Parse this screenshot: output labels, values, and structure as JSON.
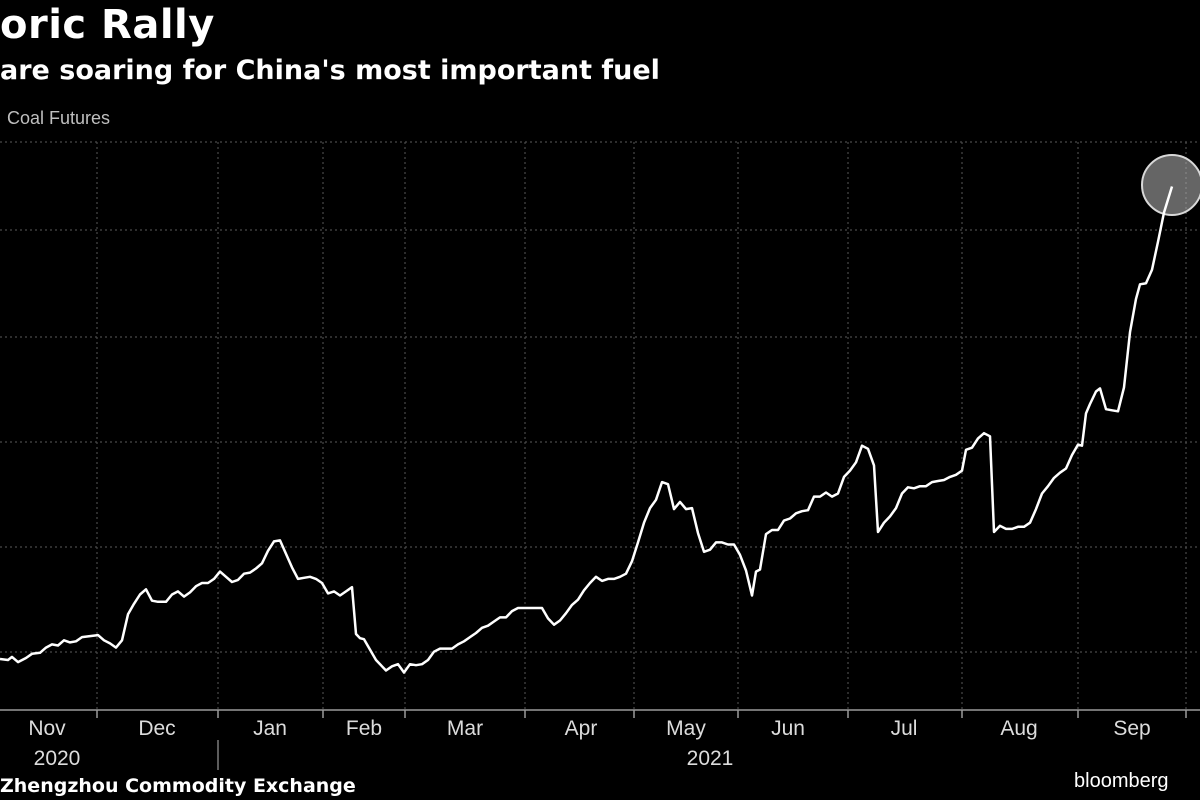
{
  "header": {
    "title": "oric Rally",
    "subtitle": "are soaring for China's most important fuel",
    "legend": "Coal Futures"
  },
  "footer": {
    "source": "Zhengzhou Commodity Exchange",
    "brand": "bloomberg"
  },
  "colors": {
    "background": "#000000",
    "line": "#ffffff",
    "grid": "#4a4a4a",
    "highlight": "#b8b8b8"
  },
  "chart_data": {
    "type": "line",
    "title": "",
    "xlabel": "",
    "ylabel": "",
    "grid": true,
    "x_ticks": [
      "Nov",
      "Dec",
      "Jan",
      "Feb",
      "Mar",
      "Apr",
      "May",
      "Jun",
      "Jul",
      "Aug",
      "Sep"
    ],
    "year_labels": [
      "2020",
      "2021"
    ],
    "highlight": "last point circled",
    "series": [
      {
        "values": [
          [
            0,
            0.9
          ],
          [
            8,
            0.8
          ],
          [
            12,
            1.1
          ],
          [
            18,
            0.6
          ],
          [
            26,
            1.0
          ],
          [
            32,
            1.4
          ],
          [
            40,
            1.5
          ],
          [
            46,
            2.0
          ],
          [
            52,
            2.3
          ],
          [
            58,
            2.2
          ],
          [
            64,
            2.7
          ],
          [
            70,
            2.5
          ],
          [
            76,
            2.6
          ],
          [
            82,
            3.0
          ],
          [
            90,
            3.1
          ],
          [
            98,
            3.2
          ],
          [
            104,
            2.7
          ],
          [
            110,
            2.4
          ],
          [
            116,
            2.0
          ],
          [
            122,
            2.7
          ],
          [
            128,
            5.2
          ],
          [
            134,
            6.2
          ],
          [
            140,
            7.1
          ],
          [
            146,
            7.6
          ],
          [
            152,
            6.5
          ],
          [
            158,
            6.4
          ],
          [
            166,
            6.4
          ],
          [
            172,
            7.1
          ],
          [
            178,
            7.4
          ],
          [
            184,
            6.9
          ],
          [
            190,
            7.3
          ],
          [
            196,
            7.9
          ],
          [
            202,
            8.2
          ],
          [
            208,
            8.2
          ],
          [
            214,
            8.6
          ],
          [
            220,
            9.3
          ],
          [
            226,
            8.8
          ],
          [
            232,
            8.3
          ],
          [
            238,
            8.5
          ],
          [
            244,
            9.1
          ],
          [
            250,
            9.2
          ],
          [
            256,
            9.6
          ],
          [
            262,
            10.1
          ],
          [
            268,
            11.3
          ],
          [
            274,
            12.2
          ],
          [
            280,
            12.3
          ],
          [
            286,
            11.0
          ],
          [
            292,
            9.7
          ],
          [
            298,
            8.6
          ],
          [
            304,
            8.7
          ],
          [
            310,
            8.8
          ],
          [
            316,
            8.6
          ],
          [
            322,
            8.2
          ],
          [
            328,
            7.2
          ],
          [
            334,
            7.4
          ],
          [
            340,
            7.0
          ],
          [
            346,
            7.4
          ],
          [
            352,
            7.8
          ],
          [
            356,
            3.3
          ],
          [
            360,
            2.9
          ],
          [
            364,
            2.8
          ],
          [
            370,
            1.8
          ],
          [
            376,
            0.8
          ],
          [
            382,
            0.2
          ],
          [
            386,
            -0.2
          ],
          [
            392,
            0.2
          ],
          [
            398,
            0.4
          ],
          [
            404,
            -0.4
          ],
          [
            410,
            0.4
          ],
          [
            416,
            0.3
          ],
          [
            422,
            0.4
          ],
          [
            428,
            0.8
          ],
          [
            434,
            1.6
          ],
          [
            440,
            1.9
          ],
          [
            446,
            1.9
          ],
          [
            452,
            1.9
          ],
          [
            458,
            2.3
          ],
          [
            464,
            2.6
          ],
          [
            470,
            3.0
          ],
          [
            476,
            3.4
          ],
          [
            482,
            3.9
          ],
          [
            488,
            4.1
          ],
          [
            494,
            4.5
          ],
          [
            500,
            4.9
          ],
          [
            506,
            4.9
          ],
          [
            512,
            5.5
          ],
          [
            518,
            5.8
          ],
          [
            524,
            5.8
          ],
          [
            530,
            5.8
          ],
          [
            536,
            5.8
          ],
          [
            542,
            5.8
          ],
          [
            548,
            4.8
          ],
          [
            554,
            4.2
          ],
          [
            560,
            4.6
          ],
          [
            566,
            5.3
          ],
          [
            572,
            6.1
          ],
          [
            578,
            6.6
          ],
          [
            584,
            7.5
          ],
          [
            590,
            8.2
          ],
          [
            596,
            8.8
          ],
          [
            602,
            8.4
          ],
          [
            608,
            8.6
          ],
          [
            614,
            8.6
          ],
          [
            620,
            8.8
          ],
          [
            626,
            9.1
          ],
          [
            632,
            10.3
          ],
          [
            638,
            12.1
          ],
          [
            644,
            14.0
          ],
          [
            650,
            15.4
          ],
          [
            656,
            16.2
          ],
          [
            662,
            17.9
          ],
          [
            668,
            17.7
          ],
          [
            674,
            15.3
          ],
          [
            680,
            16.0
          ],
          [
            686,
            15.3
          ],
          [
            692,
            15.4
          ],
          [
            698,
            13.0
          ],
          [
            704,
            11.2
          ],
          [
            710,
            11.4
          ],
          [
            716,
            12.1
          ],
          [
            722,
            12.1
          ],
          [
            728,
            11.9
          ],
          [
            734,
            11.9
          ],
          [
            740,
            10.9
          ],
          [
            746,
            9.4
          ],
          [
            752,
            7.0
          ],
          [
            756,
            9.3
          ],
          [
            760,
            9.5
          ],
          [
            766,
            12.9
          ],
          [
            772,
            13.3
          ],
          [
            778,
            13.3
          ],
          [
            784,
            14.2
          ],
          [
            790,
            14.4
          ],
          [
            796,
            14.9
          ],
          [
            802,
            15.1
          ],
          [
            808,
            15.2
          ],
          [
            814,
            16.5
          ],
          [
            820,
            16.5
          ],
          [
            826,
            16.9
          ],
          [
            832,
            16.5
          ],
          [
            838,
            16.8
          ],
          [
            844,
            18.4
          ],
          [
            850,
            19.0
          ],
          [
            856,
            19.8
          ],
          [
            862,
            21.4
          ],
          [
            868,
            21.1
          ],
          [
            874,
            19.5
          ],
          [
            878,
            13.1
          ],
          [
            884,
            14.0
          ],
          [
            890,
            14.6
          ],
          [
            896,
            15.4
          ],
          [
            902,
            16.8
          ],
          [
            908,
            17.4
          ],
          [
            914,
            17.3
          ],
          [
            920,
            17.5
          ],
          [
            926,
            17.5
          ],
          [
            932,
            17.9
          ],
          [
            938,
            18.0
          ],
          [
            944,
            18.1
          ],
          [
            950,
            18.4
          ],
          [
            956,
            18.6
          ],
          [
            962,
            19.0
          ],
          [
            966,
            21.0
          ],
          [
            972,
            21.2
          ],
          [
            978,
            22.1
          ],
          [
            984,
            22.6
          ],
          [
            990,
            22.3
          ],
          [
            994,
            13.1
          ],
          [
            1000,
            13.7
          ],
          [
            1006,
            13.4
          ],
          [
            1012,
            13.4
          ],
          [
            1018,
            13.6
          ],
          [
            1024,
            13.6
          ],
          [
            1030,
            14.0
          ],
          [
            1036,
            15.3
          ],
          [
            1042,
            16.8
          ],
          [
            1048,
            17.5
          ],
          [
            1054,
            18.3
          ],
          [
            1060,
            18.8
          ],
          [
            1066,
            19.2
          ],
          [
            1072,
            20.5
          ],
          [
            1078,
            21.5
          ],
          [
            1082,
            21.4
          ],
          [
            1086,
            24.5
          ],
          [
            1090,
            25.4
          ],
          [
            1096,
            26.6
          ],
          [
            1100,
            26.9
          ],
          [
            1106,
            24.9
          ],
          [
            1112,
            24.8
          ],
          [
            1118,
            24.7
          ],
          [
            1124,
            27.0
          ],
          [
            1130,
            32.3
          ],
          [
            1136,
            35.5
          ],
          [
            1140,
            36.9
          ],
          [
            1146,
            37.0
          ],
          [
            1152,
            38.3
          ],
          [
            1158,
            41.0
          ],
          [
            1164,
            43.8
          ],
          [
            1172,
            46.3
          ]
        ]
      }
    ]
  }
}
